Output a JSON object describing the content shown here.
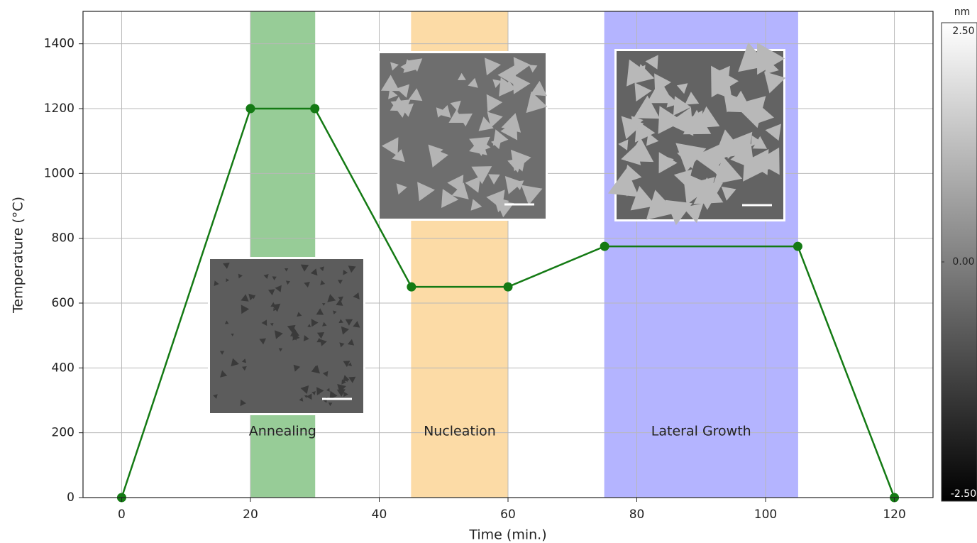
{
  "chart_data": {
    "type": "line",
    "x_label": "Time (min.)",
    "y_label": "Temperature (°C)",
    "x": [
      0,
      20,
      30,
      45,
      60,
      75,
      105,
      120
    ],
    "series": [
      {
        "color": "#147a14",
        "values": [
          0,
          1200,
          1200,
          650,
          650,
          775,
          775,
          0
        ]
      }
    ],
    "xlim": [
      -6,
      126
    ],
    "ylim": [
      0,
      1500
    ],
    "xticks": [
      0,
      20,
      40,
      60,
      80,
      100,
      120
    ],
    "yticks": [
      0,
      200,
      400,
      600,
      800,
      1000,
      1200,
      1400
    ],
    "grid": true,
    "spans": [
      {
        "label": "Annealing",
        "start": 20,
        "end": 30,
        "color": "#97cc97"
      },
      {
        "label": "Nucleation",
        "start": 45,
        "end": 60,
        "color": "#fcdba6"
      },
      {
        "label": "Lateral Growth",
        "start": 75,
        "end": 105,
        "color": "#b4b4ff"
      }
    ],
    "colorbar": {
      "unit": "nm",
      "lim": [
        -2.5,
        2.5
      ],
      "ticks": [
        {
          "value": 2.5,
          "label": "2.50"
        },
        {
          "value": 0,
          "label": "0.00"
        },
        {
          "value": -2.5,
          "label": "-2.50"
        }
      ]
    }
  }
}
